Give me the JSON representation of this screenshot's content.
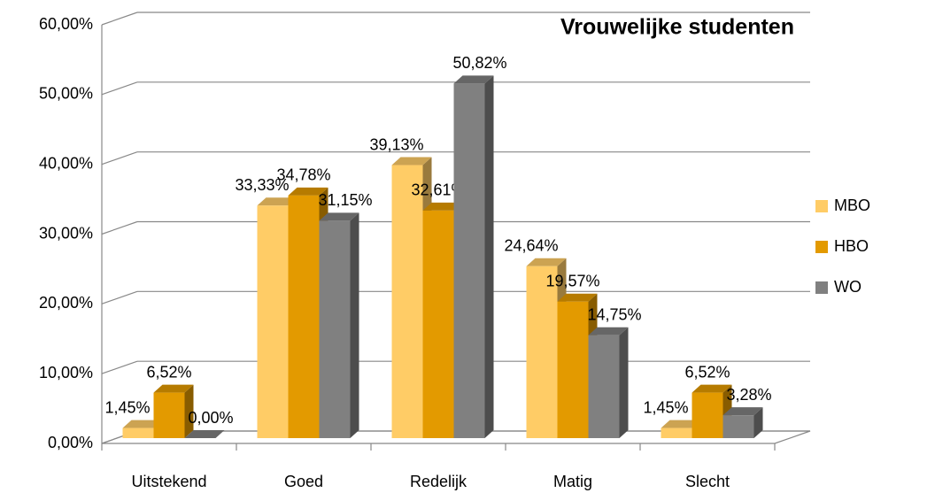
{
  "chart_data": {
    "type": "bar3d",
    "title": "Vrouwelijke studenten",
    "categories": [
      "Uitstekend",
      "Goed",
      "Redelijk",
      "Matig",
      "Slecht"
    ],
    "series": [
      {
        "name": "MBO",
        "color": "#ffcc66",
        "values": [
          1.45,
          33.33,
          39.13,
          24.64,
          1.45
        ],
        "value_labels": [
          "1,45%",
          "33,33%",
          "39,13%",
          "24,64%",
          "1,45%"
        ]
      },
      {
        "name": "HBO",
        "color": "#e39a00",
        "values": [
          6.52,
          34.78,
          32.61,
          19.57,
          6.52
        ],
        "value_labels": [
          "6,52%",
          "34,78%",
          "32,61%",
          "19,57%",
          "6,52%"
        ]
      },
      {
        "name": "WO",
        "color": "#808080",
        "values": [
          0.0,
          31.15,
          50.82,
          14.75,
          3.28
        ],
        "value_labels": [
          "0,00%",
          "31,15%",
          "50,82%",
          "14,75%",
          "3,28%"
        ]
      }
    ],
    "ylim": [
      0,
      60
    ],
    "yticks": [
      {
        "value": 0,
        "label": "0,00%"
      },
      {
        "value": 10,
        "label": "10,00%"
      },
      {
        "value": 20,
        "label": "20,00%"
      },
      {
        "value": 30,
        "label": "30,00%"
      },
      {
        "value": 40,
        "label": "40,00%"
      },
      {
        "value": 50,
        "label": "50,00%"
      },
      {
        "value": 60,
        "label": "60,00%"
      }
    ],
    "grid": true,
    "legend": "right"
  }
}
